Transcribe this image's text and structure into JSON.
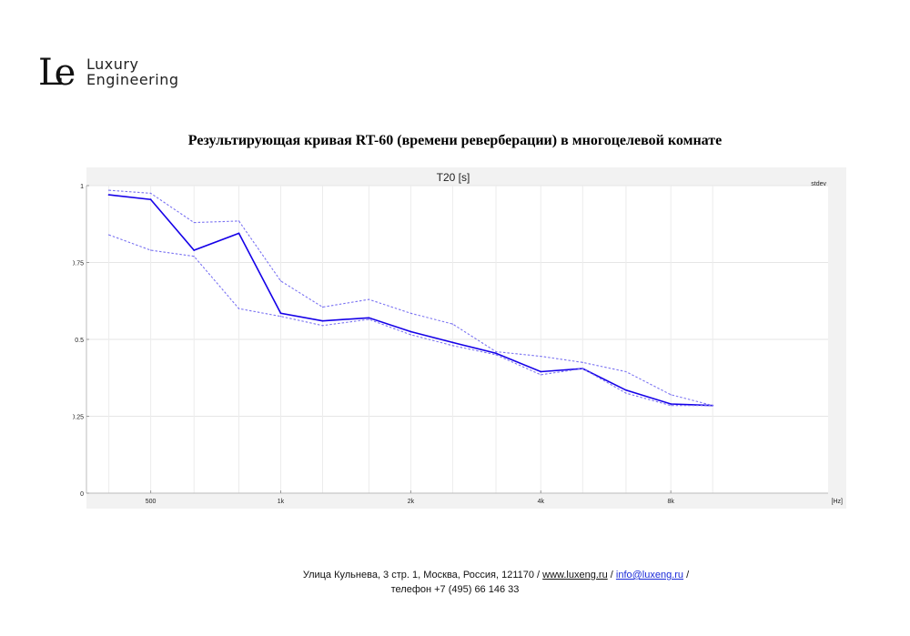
{
  "logo": {
    "mark": "Le",
    "line1": "Luxury",
    "line2": "Engineering"
  },
  "heading": "Результирующая кривая RT-60 (времени реверберации) в многоцелевой комнате",
  "chart_data": {
    "type": "line",
    "title": "T20 [s]",
    "legend_label": "stdev",
    "xlabel": "[Hz]",
    "x_scale": "log",
    "xlim": [
      355,
      18500
    ],
    "ylim": [
      0,
      1
    ],
    "yticks": [
      0,
      0.25,
      0.5,
      0.75,
      1
    ],
    "ytick_labels": [
      "0",
      "0.25",
      "0.5",
      "0.75",
      "1"
    ],
    "xticks": [
      500,
      1000,
      2000,
      4000,
      8000
    ],
    "xtick_labels": [
      "500",
      "1k",
      "2k",
      "4k",
      "8k"
    ],
    "grid": true,
    "colors": {
      "main": "#1500e8",
      "stdev": "#7a72f2"
    },
    "x": [
      400,
      500,
      630,
      800,
      1000,
      1250,
      1600,
      2000,
      2500,
      3150,
      4000,
      5000,
      6300,
      8000,
      10000
    ],
    "series": [
      {
        "role": "mean",
        "values": [
          0.97,
          0.955,
          0.79,
          0.845,
          0.585,
          0.56,
          0.57,
          0.525,
          0.49,
          0.455,
          0.395,
          0.405,
          0.335,
          0.29,
          0.285
        ]
      },
      {
        "role": "upper",
        "values": [
          0.985,
          0.975,
          0.88,
          0.885,
          0.69,
          0.605,
          0.63,
          0.585,
          0.55,
          0.46,
          0.445,
          0.425,
          0.395,
          0.32,
          0.285
        ]
      },
      {
        "role": "lower",
        "values": [
          0.84,
          0.79,
          0.77,
          0.6,
          0.575,
          0.545,
          0.565,
          0.515,
          0.48,
          0.45,
          0.385,
          0.405,
          0.325,
          0.285,
          0.285
        ]
      }
    ]
  },
  "footer": {
    "address": "Улица Кульнева, 3 стр. 1, Москва, Россия, 121170 /",
    "website": "www.luxeng.ru",
    "sep1": "/",
    "email": "info@luxeng.ru",
    "sep2": "/",
    "phone": "телефон +7 (495) 66 146 33"
  }
}
